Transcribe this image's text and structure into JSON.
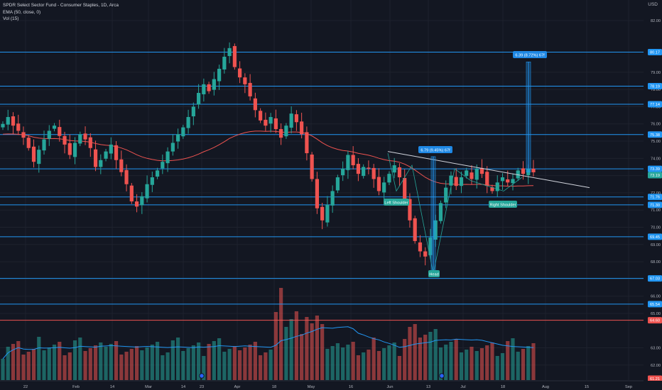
{
  "legend": {
    "title": "SPDR Select Sector Fund - Consumer Staples, 1D, Arca",
    "ema": "EMA (50, close, 0)",
    "vol": "Vol (15)"
  },
  "currency": "USD",
  "colors": {
    "background": "#131722",
    "up": "#26a69a",
    "down": "#ef5350",
    "hline": "#2196f3",
    "ema": "#ef5350",
    "trend": "#d1d4dc",
    "label_bg": "#1e88e5",
    "pattern_label_bg": "#26a69a"
  },
  "y_axis": {
    "ticks": [
      "82.00",
      "79.00",
      "78.00",
      "77.00",
      "76.00",
      "75.00",
      "74.00",
      "73.00",
      "72.00",
      "71.00",
      "70.00",
      "69.00",
      "68.00",
      "67.00",
      "66.00",
      "65.00",
      "63.00",
      "62.00"
    ],
    "price_labels": [
      "80.17",
      "78.19",
      "77.14",
      "75.38",
      "73.39",
      "73.19",
      "71.76",
      "71.30",
      "69.45",
      "67.03",
      "65.54",
      "64.60",
      "61.21"
    ]
  },
  "x_axis": {
    "ticks": [
      "22",
      "Feb",
      "14",
      "Mar",
      "14",
      "23",
      "Apr",
      "18",
      "May",
      "16",
      "Jun",
      "13",
      "Jul",
      "18",
      "Aug",
      "15",
      "Sep"
    ]
  },
  "annotations": {
    "measure_small": "6.79 (9.45%) 67f",
    "measure_large": "6.39 (8.72%) 67f",
    "left_shoulder": "Left Shoulder",
    "head": "Head",
    "right_shoulder": "Right Shoulder"
  },
  "chart_data": {
    "type": "candlestick",
    "title": "SPDR Select Sector Fund - Consumer Staples, 1D, Arca",
    "overlays": [
      "EMA (50, close, 0)",
      "Vol (15)"
    ],
    "ylim": [
      61.21,
      82.0
    ],
    "horizontal_levels": [
      80.17,
      78.19,
      77.14,
      75.38,
      73.39,
      71.76,
      71.3,
      69.45,
      67.03,
      65.54,
      64.6
    ],
    "last_price": 73.19,
    "price_path": [
      76.0,
      76.4,
      75.9,
      75.6,
      75.2,
      74.6,
      73.8,
      74.5,
      75.1,
      75.6,
      75.9,
      75.3,
      74.8,
      74.2,
      74.9,
      75.4,
      75.1,
      74.6,
      73.5,
      73.9,
      74.4,
      74.8,
      73.9,
      73.2,
      72.5,
      71.5,
      71.2,
      71.8,
      72.5,
      72.9,
      73.3,
      73.8,
      74.4,
      74.9,
      75.4,
      75.8,
      76.4,
      77.0,
      77.8,
      78.3,
      77.9,
      78.6,
      79.2,
      79.9,
      80.4,
      79.3,
      78.7,
      78.3,
      77.6,
      76.8,
      76.2,
      75.9,
      76.4,
      75.7,
      75.2,
      75.9,
      76.6,
      76.1,
      75.4,
      74.3,
      72.8,
      71.1,
      70.4,
      71.3,
      72.1,
      72.9,
      73.4,
      74.2,
      73.6,
      73.1,
      73.5,
      73.4,
      72.8,
      72.1,
      72.6,
      73.1,
      73.6,
      72.9,
      71.6,
      70.4,
      69.2,
      68.6,
      68.3,
      69.4,
      70.4,
      71.4,
      72.3,
      73.0,
      72.4,
      72.9,
      73.3,
      72.8,
      73.4,
      73.1,
      72.4,
      72.1,
      72.6,
      72.9,
      72.6,
      72.8,
      73.3,
      73.1,
      73.4,
      73.19
    ]
  }
}
